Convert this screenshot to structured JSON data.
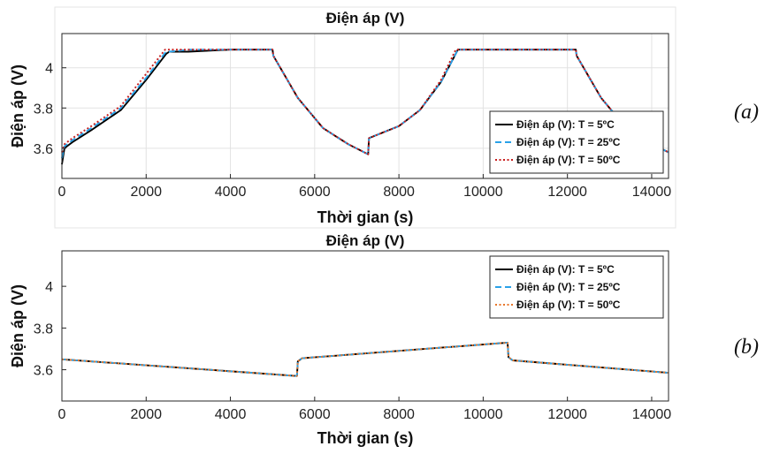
{
  "chart_data": [
    {
      "type": "line",
      "panel_label": "(a)",
      "title": "Điện áp (V)",
      "xlabel": "Thời gian (s)",
      "ylabel": "Điện áp (V)",
      "xlim": [
        0,
        14400
      ],
      "ylim": [
        3.45,
        4.17
      ],
      "xticks": [
        0,
        2000,
        4000,
        6000,
        8000,
        10000,
        12000,
        14000
      ],
      "yticks": [
        3.6,
        3.8,
        4
      ],
      "ytick_labels": [
        "3.6",
        "3.8",
        "4"
      ],
      "grid": true,
      "legend_position": "bottom-right",
      "series": [
        {
          "name": "Điện áp (V): T = 5ºC",
          "color": "#000000",
          "dash": "solid",
          "x": [
            0,
            60,
            250,
            700,
            1400,
            2000,
            2480,
            2550,
            3000,
            4000,
            5000,
            5020,
            5600,
            6200,
            6800,
            7270,
            7290,
            7400,
            8000,
            8500,
            9000,
            9400,
            10000,
            11000,
            12200,
            12220,
            12800,
            13400,
            14000,
            14400
          ],
          "y": [
            3.52,
            3.6,
            3.63,
            3.69,
            3.79,
            3.94,
            4.07,
            4.08,
            4.08,
            4.09,
            4.09,
            4.06,
            3.85,
            3.7,
            3.62,
            3.57,
            3.65,
            3.66,
            3.71,
            3.79,
            3.93,
            4.09,
            4.09,
            4.09,
            4.09,
            4.06,
            3.85,
            3.7,
            3.62,
            3.58
          ]
        },
        {
          "name": "Điện áp (V): T = 25ºC",
          "color": "#2aa1e8",
          "dash": "dashed",
          "x": [
            0,
            60,
            250,
            700,
            1400,
            2000,
            2470,
            2550,
            3000,
            4000,
            5000,
            5020,
            5600,
            6200,
            6800,
            7270,
            7290,
            7400,
            8000,
            8500,
            9000,
            9400,
            10000,
            11000,
            12200,
            12220,
            12800,
            13400,
            14000,
            14400
          ],
          "y": [
            3.55,
            3.61,
            3.64,
            3.7,
            3.8,
            3.95,
            4.08,
            4.08,
            4.09,
            4.09,
            4.09,
            4.06,
            3.85,
            3.7,
            3.62,
            3.57,
            3.65,
            3.66,
            3.71,
            3.79,
            3.93,
            4.09,
            4.09,
            4.09,
            4.09,
            4.06,
            3.85,
            3.7,
            3.62,
            3.58
          ]
        },
        {
          "name": "Điện áp (V): T = 50ºC",
          "color": "#c81e1e",
          "dash": "dotted",
          "x": [
            0,
            60,
            250,
            700,
            1400,
            2000,
            2450,
            2550,
            3000,
            4000,
            5000,
            5020,
            5600,
            6200,
            6800,
            7270,
            7290,
            7400,
            8000,
            8500,
            9000,
            9350,
            10000,
            11000,
            12200,
            12220,
            12800,
            13400,
            14000,
            14400
          ],
          "y": [
            3.58,
            3.62,
            3.65,
            3.71,
            3.81,
            3.97,
            4.09,
            4.09,
            4.09,
            4.09,
            4.09,
            4.06,
            3.85,
            3.7,
            3.62,
            3.57,
            3.65,
            3.66,
            3.71,
            3.79,
            3.94,
            4.09,
            4.09,
            4.09,
            4.09,
            4.06,
            3.85,
            3.7,
            3.62,
            3.58
          ]
        }
      ]
    },
    {
      "type": "line",
      "panel_label": "(b)",
      "title": "Điện áp (V)",
      "xlabel": "Thời gian (s)",
      "ylabel": "Điện áp (V)",
      "xlim": [
        0,
        14400
      ],
      "ylim": [
        3.45,
        4.17
      ],
      "xticks": [
        0,
        2000,
        4000,
        6000,
        8000,
        10000,
        12000,
        14000
      ],
      "yticks": [
        3.6,
        3.8,
        4
      ],
      "ytick_labels": [
        "3.6",
        "3.8",
        "4"
      ],
      "grid": false,
      "legend_position": "top-right",
      "series": [
        {
          "name": "Điện áp (V): T = 5ºC",
          "color": "#000000",
          "dash": "solid",
          "x": [
            0,
            5580,
            5600,
            5700,
            10580,
            10600,
            10700,
            14400
          ],
          "y": [
            3.65,
            3.57,
            3.64,
            3.655,
            3.73,
            3.66,
            3.645,
            3.585
          ]
        },
        {
          "name": "Điện áp (V): T = 25ºC",
          "color": "#2aa1e8",
          "dash": "dashed",
          "x": [
            0,
            5580,
            5600,
            5700,
            10580,
            10600,
            10700,
            14400
          ],
          "y": [
            3.65,
            3.57,
            3.64,
            3.655,
            3.73,
            3.66,
            3.645,
            3.585
          ]
        },
        {
          "name": "Điện áp (V): T = 50ºC",
          "color": "#e8762a",
          "dash": "dotted",
          "x": [
            0,
            5580,
            5600,
            5700,
            10580,
            10600,
            10700,
            14400
          ],
          "y": [
            3.65,
            3.57,
            3.64,
            3.655,
            3.73,
            3.66,
            3.645,
            3.585
          ]
        }
      ]
    }
  ]
}
